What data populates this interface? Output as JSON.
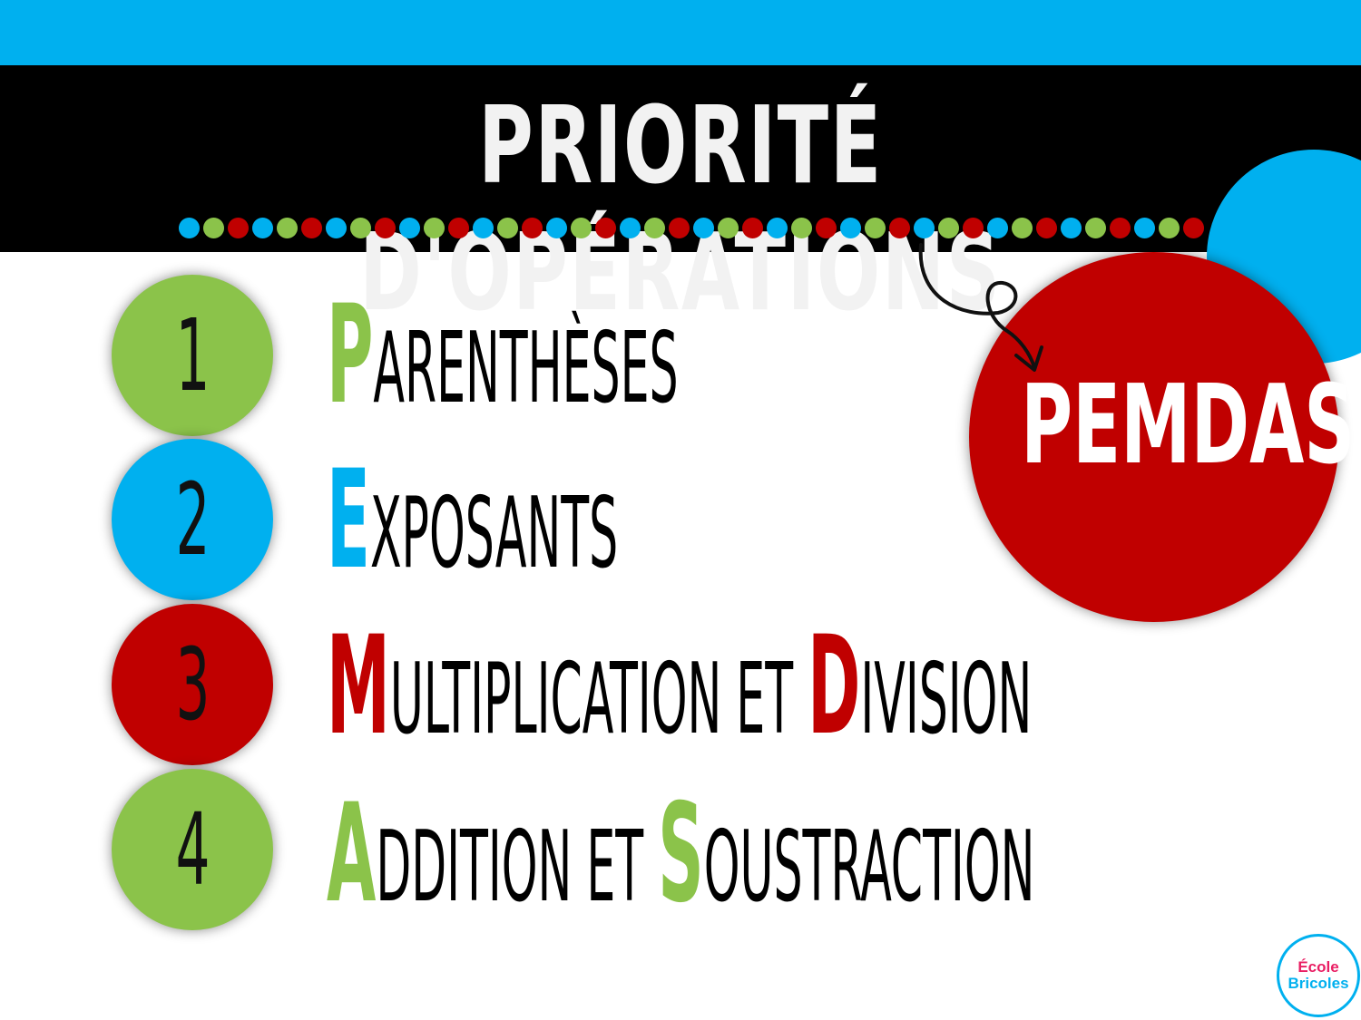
{
  "title": "PRIORITÉ D'OPÉRATIONS",
  "acronym": "PEMDAS",
  "colors": {
    "blue": "#00b0ef",
    "green": "#8bc34a",
    "red": "#c00000",
    "black": "#000000"
  },
  "dots": [
    "blue",
    "green",
    "red",
    "blue",
    "green",
    "red",
    "blue",
    "green",
    "red",
    "blue",
    "green",
    "red",
    "blue",
    "green",
    "red",
    "blue",
    "green",
    "red",
    "blue",
    "green",
    "red",
    "blue",
    "green",
    "red",
    "blue",
    "green",
    "red",
    "blue",
    "green",
    "red",
    "blue",
    "green",
    "red",
    "blue",
    "green",
    "red",
    "blue",
    "green",
    "red",
    "blue",
    "green",
    "red",
    "blue",
    "green",
    "red",
    "blue",
    "green",
    "red",
    "blue",
    "green",
    "red",
    "blue",
    "green",
    "red",
    "blue",
    "green",
    "red",
    "blue",
    "green",
    "red",
    "blue",
    "green",
    "red",
    "blue",
    "green",
    "red",
    "blue",
    "green",
    "red",
    "blue",
    "green",
    "red"
  ],
  "steps": [
    {
      "number": "1",
      "circle_color": "green",
      "parts": [
        {
          "cap": "P",
          "cap_color": "green",
          "rest": "ARENTHÈSES"
        }
      ]
    },
    {
      "number": "2",
      "circle_color": "blue",
      "parts": [
        {
          "cap": "E",
          "cap_color": "blue",
          "rest": "XPOSANTS"
        }
      ]
    },
    {
      "number": "3",
      "circle_color": "red",
      "parts": [
        {
          "cap": "M",
          "cap_color": "red",
          "rest": "ULTIPLICATION ET "
        },
        {
          "cap": "D",
          "cap_color": "red",
          "rest": "IVISION"
        }
      ]
    },
    {
      "number": "4",
      "circle_color": "green",
      "parts": [
        {
          "cap": "A",
          "cap_color": "green",
          "rest": "DDITION ET "
        },
        {
          "cap": "S",
          "cap_color": "green",
          "rest": "OUSTRACTION"
        }
      ]
    }
  ],
  "logo": {
    "line1": "École",
    "line2": "Bricoles"
  }
}
